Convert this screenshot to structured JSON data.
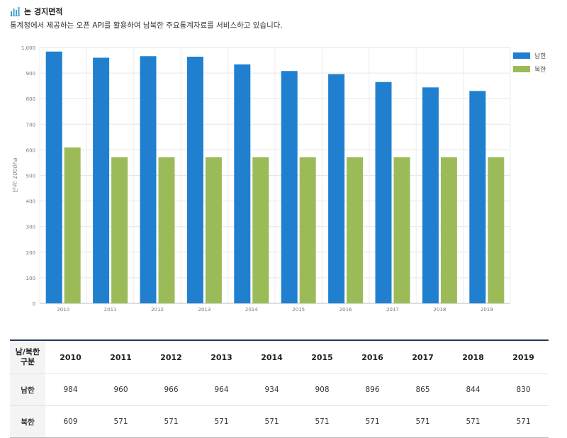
{
  "header": {
    "title": "논 경지면적",
    "subtitle": "통계청에서 제공하는 오픈 API를 활용하여 남북한 주요통계자료를 서비스하고 있습니다."
  },
  "colors": {
    "south": "#2080cf",
    "north": "#9bbb59",
    "title_icon": "#4a9fd8"
  },
  "chart_data": {
    "type": "bar",
    "categories": [
      "2010",
      "2011",
      "2012",
      "2013",
      "2014",
      "2015",
      "2016",
      "2017",
      "2018",
      "2019"
    ],
    "series": [
      {
        "name": "남한",
        "values": [
          984,
          960,
          966,
          964,
          934,
          908,
          896,
          865,
          844,
          830
        ]
      },
      {
        "name": "북한",
        "values": [
          609,
          571,
          571,
          571,
          571,
          571,
          571,
          571,
          571,
          571
        ]
      }
    ],
    "ylabel": "단위: 1000ha",
    "ylim": [
      0,
      1000
    ],
    "yticks": [
      "0",
      "100",
      "200",
      "300",
      "400",
      "500",
      "600",
      "700",
      "800",
      "900",
      "1,000"
    ],
    "grid": true,
    "legend": "top-right"
  },
  "table": {
    "corner_line1": "남/북한",
    "corner_line2": "구분",
    "years": [
      "2010",
      "2011",
      "2012",
      "2013",
      "2014",
      "2015",
      "2016",
      "2017",
      "2018",
      "2019"
    ],
    "rows": [
      {
        "label": "남한",
        "values": [
          "984",
          "960",
          "966",
          "964",
          "934",
          "908",
          "896",
          "865",
          "844",
          "830"
        ]
      },
      {
        "label": "북한",
        "values": [
          "609",
          "571",
          "571",
          "571",
          "571",
          "571",
          "571",
          "571",
          "571",
          "571"
        ]
      }
    ]
  }
}
